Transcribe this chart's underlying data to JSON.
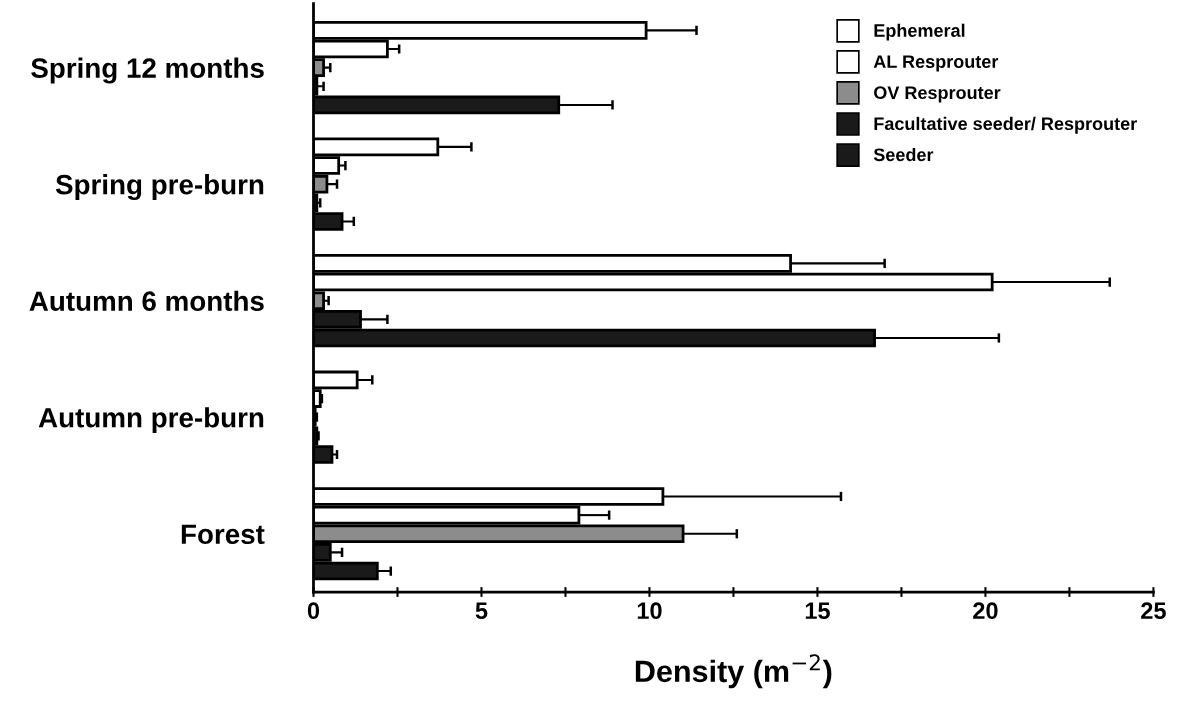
{
  "chart_data": {
    "type": "bar",
    "orientation": "horizontal",
    "xlabel": "Density (m$^{−2}$)",
    "categories": [
      "Spring 12 months",
      "Spring pre-burn",
      "Autumn 6 months",
      "Autumn pre-burn",
      "Forest"
    ],
    "series": [
      {
        "name": "Ephemeral",
        "color": "#ffffff",
        "values": [
          9.9,
          3.7,
          14.2,
          1.3,
          10.4
        ],
        "errors": [
          [
            9.9,
            11.4
          ],
          [
            3.7,
            4.7
          ],
          [
            14.2,
            17.0
          ],
          [
            1.3,
            1.75
          ],
          [
            10.4,
            15.7
          ]
        ]
      },
      {
        "name": "AL Resprouter",
        "color": "#ffffff",
        "values": [
          2.2,
          0.75,
          20.2,
          0.2,
          7.9
        ],
        "errors": [
          [
            2.2,
            2.55
          ],
          [
            0.75,
            0.95
          ],
          [
            20.2,
            23.7
          ],
          [
            0.2,
            0.25
          ],
          [
            7.9,
            8.8
          ]
        ]
      },
      {
        "name": "OV Resprouter",
        "color": "#8c8c8c",
        "values": [
          0.3,
          0.4,
          0.3,
          0.05,
          11.0
        ],
        "errors": [
          [
            0.3,
            0.5
          ],
          [
            0.4,
            0.7
          ],
          [
            0.3,
            0.45
          ],
          [
            0.05,
            0.1
          ],
          [
            11.0,
            12.6
          ]
        ]
      },
      {
        "name": "Facultative seeder/ Resprouter",
        "color": "#1a1a1a",
        "values": [
          0.1,
          0.1,
          1.4,
          0.1,
          0.5
        ],
        "errors": [
          [
            0.1,
            0.3
          ],
          [
            0.1,
            0.2
          ],
          [
            1.4,
            2.2
          ],
          [
            0.1,
            0.15
          ],
          [
            0.5,
            0.85
          ]
        ]
      },
      {
        "name": "Seeder",
        "color": "#1a1a1a",
        "values": [
          7.3,
          0.85,
          16.7,
          0.55,
          1.9
        ],
        "errors": [
          [
            7.3,
            8.9
          ],
          [
            0.85,
            1.2
          ],
          [
            16.7,
            20.4
          ],
          [
            0.55,
            0.7
          ],
          [
            1.9,
            2.3
          ]
        ]
      }
    ],
    "xlim": [
      0,
      25
    ],
    "xticks": [
      0,
      {
        "value": 2.5,
        "label": null
      },
      5,
      {
        "value": 7.5,
        "label": null
      },
      10,
      {
        "value": 12.5,
        "label": null
      },
      15,
      {
        "value": 17.5,
        "label": null
      },
      20,
      {
        "value": 22.5,
        "label": null
      },
      25
    ],
    "legend": "top right",
    "grid": false
  }
}
